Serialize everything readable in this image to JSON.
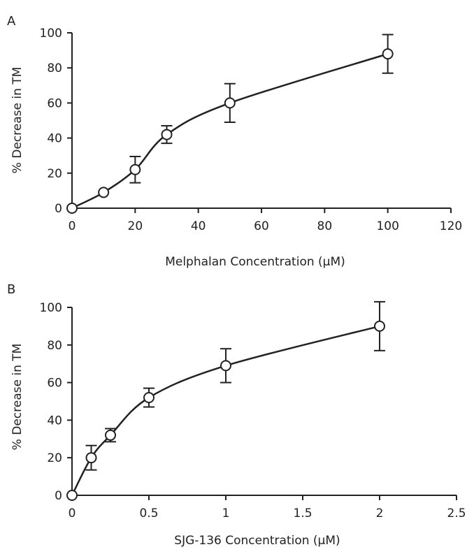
{
  "chart_data": [
    {
      "type": "line",
      "panel_label": "A",
      "xlabel": "Melphalan Concentration (μM)",
      "ylabel": "% Decrease in TM",
      "xlim": [
        0,
        120
      ],
      "ylim": [
        0,
        100
      ],
      "xticks": [
        0,
        20,
        40,
        60,
        80,
        100,
        120
      ],
      "yticks": [
        0,
        20,
        40,
        60,
        80,
        100
      ],
      "series": [
        {
          "x": [
            0,
            10,
            20,
            30,
            50,
            100
          ],
          "y": [
            0,
            9,
            22,
            42,
            60,
            88
          ],
          "error": [
            0,
            0,
            7.5,
            5,
            11,
            11
          ]
        }
      ],
      "grid": false,
      "marker": "open-circle",
      "line_style": "smooth"
    },
    {
      "type": "line",
      "panel_label": "B",
      "xlabel": "SJG-136 Concentration (μM)",
      "ylabel": "% Decrease in TM",
      "xlim": [
        0,
        2.5
      ],
      "ylim": [
        0,
        100
      ],
      "xticks": [
        0,
        0.5,
        1,
        1.5,
        2,
        2.5
      ],
      "yticks": [
        0,
        20,
        40,
        60,
        80,
        100
      ],
      "series": [
        {
          "x": [
            0,
            0.125,
            0.25,
            0.5,
            1,
            2
          ],
          "y": [
            0,
            20,
            32,
            52,
            69,
            90
          ],
          "error": [
            0,
            6.5,
            3.5,
            5,
            9,
            13
          ]
        }
      ],
      "grid": false,
      "marker": "open-circle",
      "line_style": "smooth"
    }
  ]
}
